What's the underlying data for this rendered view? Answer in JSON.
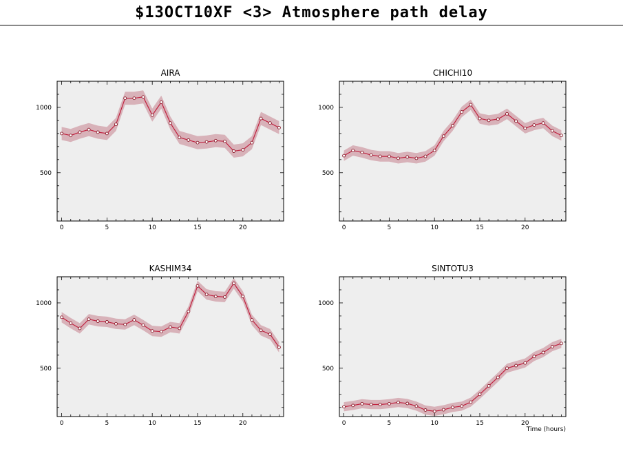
{
  "page": {
    "title": "$13OCT10XF <3>  Atmosphere path delay"
  },
  "colors": {
    "panel_bg": "#eeeeee",
    "band": "#d8b2b9",
    "line": "#c0213f",
    "marker": "#8b1a2a"
  },
  "chart_data": [
    {
      "type": "line",
      "title": "AIRA",
      "xlabel": "",
      "ylabel": "",
      "xlim": [
        -0.5,
        24.5
      ],
      "ylim": [
        130,
        1200
      ],
      "x_ticks": [
        0,
        5,
        10,
        15,
        20
      ],
      "y_ticks": [
        500,
        1000
      ],
      "grid": false,
      "legend": "none",
      "x": [
        0,
        1,
        2,
        3,
        4,
        5,
        6,
        7,
        8,
        9,
        10,
        11,
        12,
        13,
        14,
        15,
        16,
        17,
        18,
        19,
        20,
        21,
        22,
        23,
        24
      ],
      "values": [
        800,
        785,
        810,
        830,
        810,
        800,
        870,
        1070,
        1070,
        1080,
        940,
        1040,
        880,
        770,
        750,
        730,
        735,
        745,
        740,
        665,
        675,
        730,
        915,
        880,
        845
      ],
      "band": 50
    },
    {
      "type": "line",
      "title": "CHICHI10",
      "xlabel": "",
      "ylabel": "",
      "xlim": [
        -0.5,
        24.5
      ],
      "ylim": [
        130,
        1200
      ],
      "x_ticks": [
        0,
        5,
        10,
        15,
        20
      ],
      "y_ticks": [
        500,
        1000
      ],
      "grid": false,
      "legend": "none",
      "x": [
        0,
        1,
        2,
        3,
        4,
        5,
        6,
        7,
        8,
        9,
        10,
        11,
        12,
        13,
        14,
        15,
        16,
        17,
        18,
        19,
        20,
        21,
        22,
        23,
        24
      ],
      "values": [
        630,
        670,
        655,
        635,
        625,
        625,
        610,
        620,
        610,
        625,
        670,
        780,
        860,
        965,
        1020,
        915,
        900,
        910,
        950,
        895,
        840,
        865,
        880,
        820,
        785
      ],
      "band": 40
    },
    {
      "type": "line",
      "title": "KASHIM34",
      "xlabel": "",
      "ylabel": "",
      "xlim": [
        -0.5,
        24.5
      ],
      "ylim": [
        130,
        1200
      ],
      "x_ticks": [
        0,
        5,
        10,
        15,
        20
      ],
      "y_ticks": [
        500,
        1000
      ],
      "grid": false,
      "legend": "none",
      "x": [
        0,
        1,
        2,
        3,
        4,
        5,
        6,
        7,
        8,
        9,
        10,
        11,
        12,
        13,
        14,
        15,
        16,
        17,
        18,
        19,
        20,
        21,
        22,
        23,
        24
      ],
      "values": [
        890,
        845,
        805,
        875,
        860,
        855,
        840,
        835,
        870,
        830,
        785,
        780,
        815,
        805,
        935,
        1130,
        1065,
        1050,
        1045,
        1150,
        1050,
        870,
        790,
        760,
        660
      ],
      "band": 40
    },
    {
      "type": "line",
      "title": "SINTOTU3",
      "xlabel": "Time (hours)",
      "ylabel": "",
      "xlim": [
        -0.5,
        24.5
      ],
      "ylim": [
        130,
        1200
      ],
      "x_ticks": [
        0,
        5,
        10,
        15,
        20
      ],
      "y_ticks": [
        500,
        1000
      ],
      "grid": false,
      "legend": "none",
      "x": [
        0,
        1,
        2,
        3,
        4,
        5,
        6,
        7,
        8,
        9,
        10,
        11,
        12,
        13,
        14,
        15,
        16,
        17,
        18,
        19,
        20,
        21,
        22,
        23,
        24
      ],
      "values": [
        205,
        215,
        228,
        222,
        222,
        228,
        238,
        230,
        210,
        180,
        170,
        182,
        200,
        210,
        240,
        300,
        365,
        430,
        500,
        520,
        540,
        590,
        620,
        665,
        690
      ],
      "band": 35
    }
  ]
}
